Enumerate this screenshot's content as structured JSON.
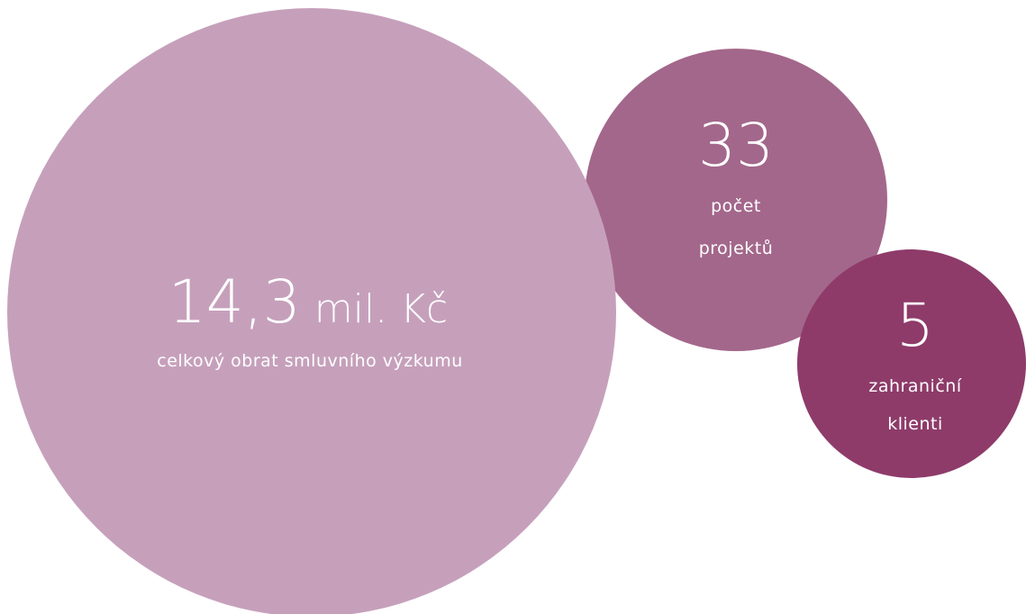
{
  "nodes": [
    {
      "value": "14,3",
      "unit": "mil. Kč",
      "label": [
        "celkový obrat smluvního výzkumu"
      ]
    },
    {
      "value": "33",
      "label": [
        "počet",
        "projektů"
      ]
    },
    {
      "value": "5",
      "label": [
        "zahraniční",
        "klienti"
      ]
    }
  ]
}
